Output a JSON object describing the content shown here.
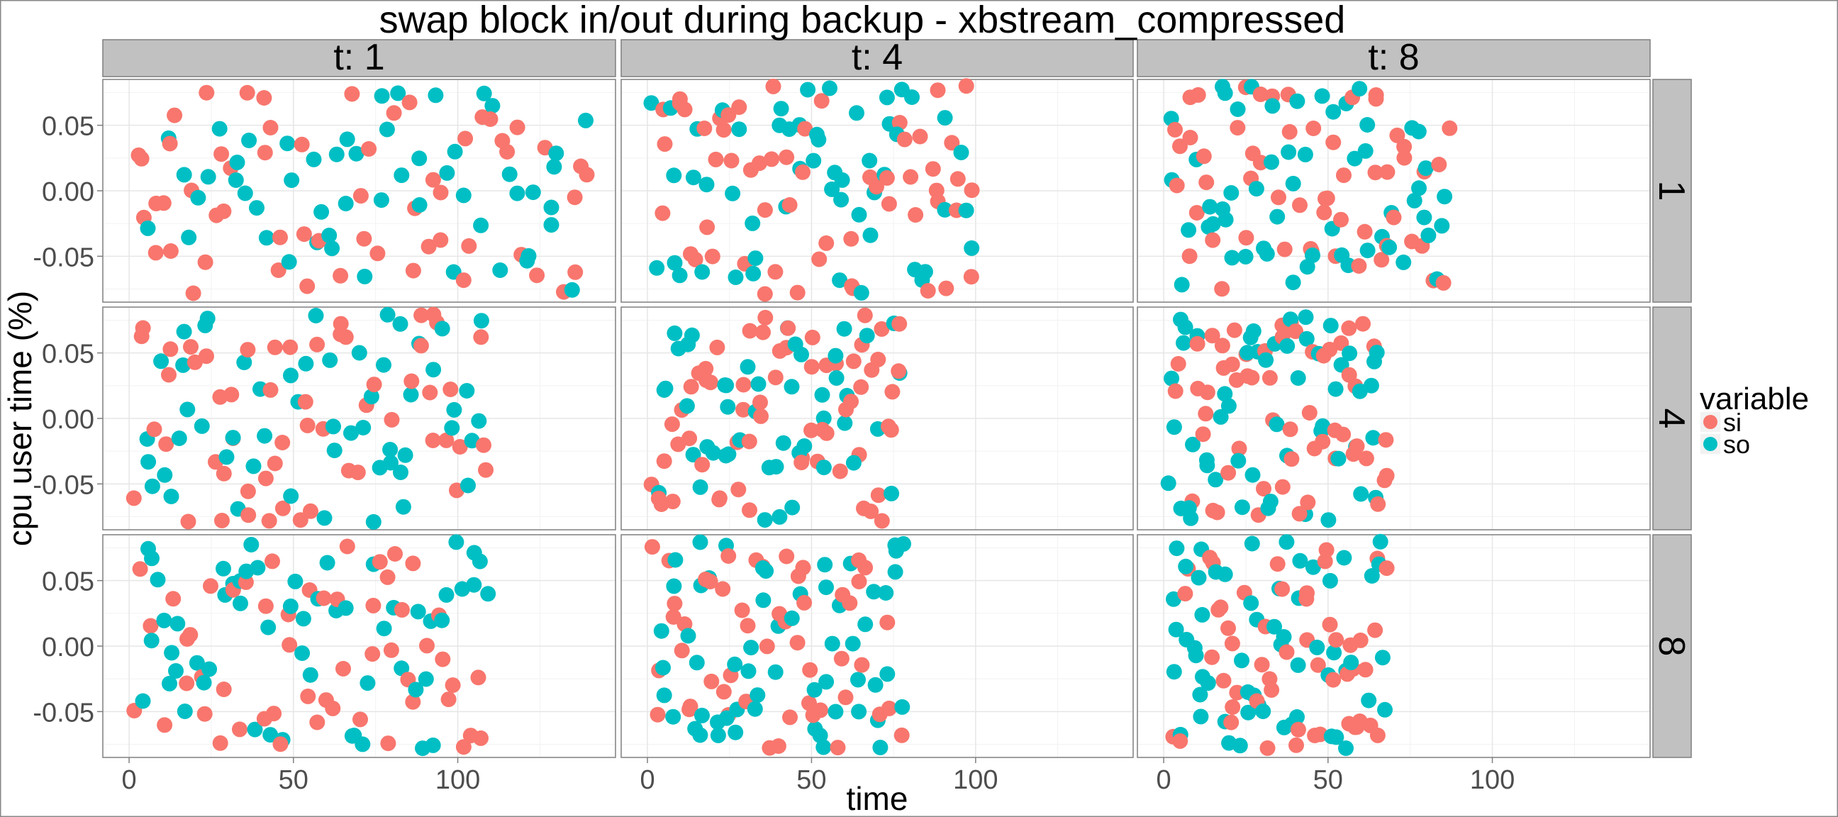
{
  "chart_data": {
    "type": "scatter",
    "title": "swap block in/out during backup -  xbstream_compressed",
    "xlabel": "time",
    "ylabel": "cpu user time (%)",
    "xlim": [
      -8,
      148
    ],
    "ylim": [
      -0.085,
      0.085
    ],
    "x_ticks": [
      0,
      50,
      100
    ],
    "x_tick_labels": [
      "0",
      "50",
      "100"
    ],
    "y_ticks": [
      -0.05,
      0.0,
      0.05
    ],
    "y_tick_labels": [
      "-0.05",
      "0.00",
      "0.05"
    ],
    "grid": true,
    "legend": {
      "title": "variable",
      "position": "right"
    },
    "facets": {
      "columns": [
        {
          "key": "1",
          "label": "t: 1",
          "t": 1,
          "xmax": 140
        },
        {
          "key": "4",
          "label": "t: 4",
          "t": 4,
          "xmax": 100
        },
        {
          "key": "8",
          "label": "t: 8",
          "t": 8,
          "xmax": 87
        }
      ],
      "rows": [
        {
          "key": "1",
          "label": "1",
          "xscale": 1.0
        },
        {
          "key": "4",
          "label": "4",
          "xscale": 0.78
        },
        {
          "key": "8",
          "label": "8",
          "xscale": 0.78
        }
      ]
    },
    "series": [
      {
        "name": "si",
        "color": "#F8766D"
      },
      {
        "name": "so",
        "color": "#00BFC4"
      }
    ],
    "points_per_panel": 110,
    "random_seed": 20140822
  }
}
